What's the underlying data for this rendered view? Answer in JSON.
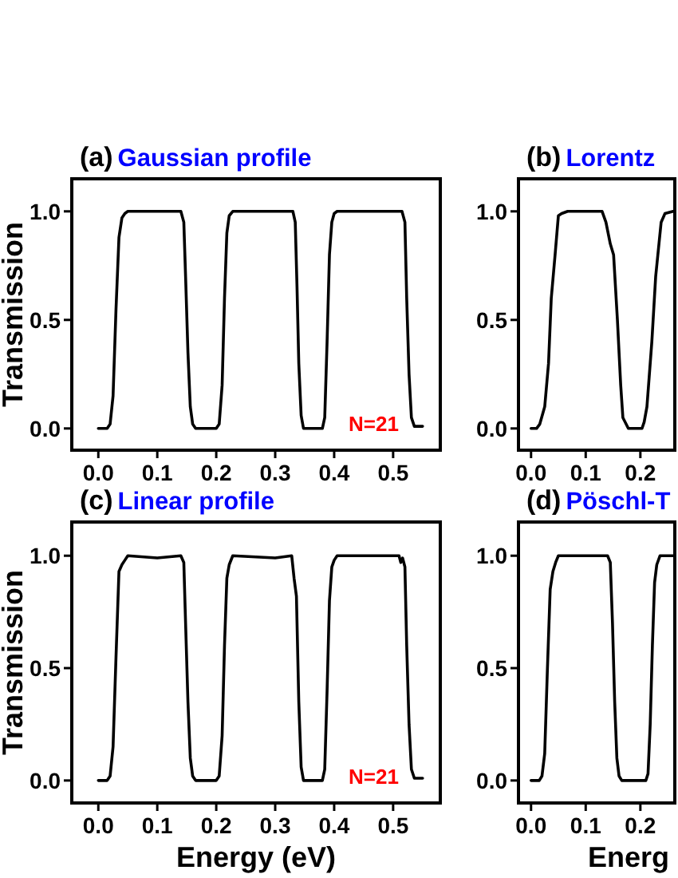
{
  "chart_data": [
    {
      "type": "line",
      "title": "(a)",
      "subtitle": "Gaussian profile",
      "ylabel": "Transmission",
      "annotations": [
        "N=21"
      ],
      "xlim": [
        -0.045,
        0.58
      ],
      "ylim": [
        -0.1,
        1.15
      ],
      "xticks": [
        {
          "value": 0,
          "label": "0.0"
        },
        {
          "value": 0.1,
          "label": "0.1"
        },
        {
          "value": 0.2,
          "label": "0.2"
        },
        {
          "value": 0.3,
          "label": "0.3"
        },
        {
          "value": 0.4,
          "label": "0.4"
        },
        {
          "value": 0.5,
          "label": "0.5"
        }
      ],
      "yticks": [
        {
          "value": 0,
          "label": "0.0"
        },
        {
          "value": 0.5,
          "label": "0.5"
        },
        {
          "value": 1,
          "label": "1.0"
        }
      ],
      "series": [
        {
          "color": "#000000",
          "x": [
            0,
            0.015,
            0.02,
            0.025,
            0.03,
            0.035,
            0.04,
            0.045,
            0.05,
            0.14,
            0.145,
            0.148,
            0.152,
            0.156,
            0.16,
            0.165,
            0.2,
            0.205,
            0.21,
            0.214,
            0.218,
            0.222,
            0.228,
            0.33,
            0.334,
            0.337,
            0.34,
            0.344,
            0.348,
            0.38,
            0.384,
            0.388,
            0.392,
            0.396,
            0.4,
            0.405,
            0.515,
            0.52,
            0.523,
            0.527,
            0.531,
            0.536,
            0.55
          ],
          "values": [
            0,
            0,
            0.02,
            0.15,
            0.55,
            0.88,
            0.97,
            0.99,
            1,
            1,
            0.95,
            0.7,
            0.35,
            0.1,
            0.02,
            0,
            0,
            0.02,
            0.2,
            0.6,
            0.9,
            0.98,
            1,
            1,
            0.95,
            0.65,
            0.3,
            0.06,
            0,
            0,
            0.05,
            0.4,
            0.8,
            0.95,
            0.99,
            1,
            1,
            0.95,
            0.6,
            0.25,
            0.05,
            0.01,
            0.01
          ]
        }
      ]
    },
    {
      "type": "line",
      "title": "(b)",
      "subtitle": "Lorentz",
      "xlim": [
        -0.023,
        0.263
      ],
      "ylim": [
        -0.1,
        1.15
      ],
      "xticks": [
        {
          "value": 0,
          "label": "0.0"
        },
        {
          "value": 0.1,
          "label": "0.1"
        },
        {
          "value": 0.2,
          "label": "0.2"
        }
      ],
      "yticks": [
        {
          "value": 0,
          "label": "0.0"
        },
        {
          "value": 0.5,
          "label": "0.5"
        },
        {
          "value": 1,
          "label": "1.0"
        }
      ],
      "series": [
        {
          "color": "#000000",
          "x": [
            0,
            0.01,
            0.016,
            0.025,
            0.032,
            0.037,
            0.044,
            0.05,
            0.056,
            0.067,
            0.13,
            0.137,
            0.145,
            0.151,
            0.158,
            0.164,
            0.168,
            0.178,
            0.203,
            0.207,
            0.212,
            0.221,
            0.228,
            0.238,
            0.245,
            0.26
          ],
          "values": [
            0,
            0,
            0.02,
            0.1,
            0.3,
            0.6,
            0.8,
            0.98,
            0.99,
            1,
            1,
            0.95,
            0.85,
            0.8,
            0.5,
            0.2,
            0.05,
            0,
            0,
            0.03,
            0.1,
            0.4,
            0.7,
            0.95,
            0.99,
            1
          ]
        }
      ]
    },
    {
      "type": "line",
      "title": "(c)",
      "subtitle": "Linear profile",
      "xlabel": "Energy  (eV)",
      "ylabel": "Transmission",
      "annotations": [
        "N=21"
      ],
      "xlim": [
        -0.045,
        0.58
      ],
      "ylim": [
        -0.1,
        1.15
      ],
      "xticks": [
        {
          "value": 0,
          "label": "0.0"
        },
        {
          "value": 0.1,
          "label": "0.1"
        },
        {
          "value": 0.2,
          "label": "0.2"
        },
        {
          "value": 0.3,
          "label": "0.3"
        },
        {
          "value": 0.4,
          "label": "0.4"
        },
        {
          "value": 0.5,
          "label": "0.5"
        }
      ],
      "yticks": [
        {
          "value": 0,
          "label": "0.0"
        },
        {
          "value": 0.5,
          "label": "0.5"
        },
        {
          "value": 1,
          "label": "1.0"
        }
      ],
      "series": [
        {
          "color": "#000000",
          "x": [
            0,
            0.015,
            0.02,
            0.025,
            0.03,
            0.035,
            0.04,
            0.045,
            0.05,
            0.1,
            0.14,
            0.145,
            0.148,
            0.152,
            0.156,
            0.16,
            0.165,
            0.2,
            0.205,
            0.21,
            0.214,
            0.218,
            0.222,
            0.228,
            0.3,
            0.328,
            0.332,
            0.336,
            0.34,
            0.344,
            0.348,
            0.38,
            0.384,
            0.388,
            0.392,
            0.396,
            0.4,
            0.405,
            0.51,
            0.513,
            0.516,
            0.52,
            0.523,
            0.527,
            0.531,
            0.536,
            0.55
          ],
          "values": [
            0,
            0,
            0.02,
            0.15,
            0.55,
            0.93,
            0.96,
            0.98,
            1,
            0.99,
            1,
            0.97,
            0.7,
            0.35,
            0.1,
            0.02,
            0,
            0,
            0.02,
            0.2,
            0.6,
            0.9,
            0.96,
            1,
            0.99,
            1,
            0.9,
            0.82,
            0.35,
            0.06,
            0,
            0,
            0.05,
            0.4,
            0.8,
            0.95,
            0.98,
            1,
            1,
            0.97,
            0.99,
            0.95,
            0.6,
            0.25,
            0.05,
            0.01,
            0.01
          ]
        }
      ]
    },
    {
      "type": "line",
      "title": "(d)",
      "subtitle": "Pöschl-T",
      "xlabel": "Energ",
      "xlim": [
        -0.023,
        0.263
      ],
      "ylim": [
        -0.1,
        1.15
      ],
      "xticks": [
        {
          "value": 0,
          "label": "0.0"
        },
        {
          "value": 0.1,
          "label": "0.1"
        },
        {
          "value": 0.2,
          "label": "0.2"
        }
      ],
      "yticks": [
        {
          "value": 0,
          "label": "0.0"
        },
        {
          "value": 0.5,
          "label": "0.5"
        },
        {
          "value": 1,
          "label": "1.0"
        }
      ],
      "series": [
        {
          "color": "#000000",
          "x": [
            0,
            0.015,
            0.02,
            0.025,
            0.03,
            0.035,
            0.04,
            0.045,
            0.05,
            0.14,
            0.145,
            0.149,
            0.153,
            0.157,
            0.161,
            0.166,
            0.21,
            0.214,
            0.218,
            0.222,
            0.226,
            0.23,
            0.236,
            0.26
          ],
          "values": [
            0,
            0,
            0.02,
            0.12,
            0.5,
            0.85,
            0.93,
            0.97,
            1,
            1,
            0.97,
            0.7,
            0.35,
            0.1,
            0.02,
            0,
            0,
            0.03,
            0.25,
            0.6,
            0.88,
            0.96,
            1,
            1
          ]
        }
      ]
    }
  ]
}
